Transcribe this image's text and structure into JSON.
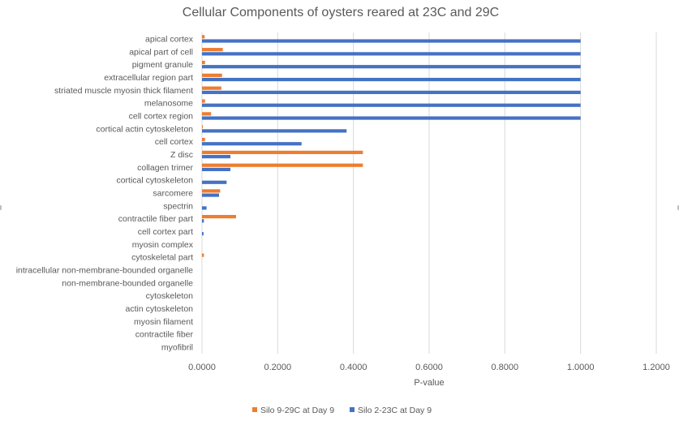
{
  "chart_data": {
    "type": "bar",
    "orientation": "horizontal",
    "title": "Cellular Components of oysters reared at 23C and 29C",
    "xlabel": "P-value",
    "ylabel": "",
    "xlim": [
      0,
      1.2
    ],
    "x_ticks": [
      "0.0000",
      "0.2000",
      "0.4000",
      "0.6000",
      "0.8000",
      "1.0000",
      "1.2000"
    ],
    "x_tick_values": [
      0,
      0.2,
      0.4,
      0.6,
      0.8,
      1.0,
      1.2
    ],
    "grid": true,
    "legend_position": "bottom",
    "categories": [
      "apical cortex",
      "apical part of cell",
      "pigment granule",
      "extracellular region part",
      "striated muscle myosin thick filament",
      "melanosome",
      "cell cortex region",
      "cortical actin cytoskeleton",
      "cell cortex",
      "Z disc",
      "collagen trimer",
      "cortical cytoskeleton",
      "sarcomere",
      "spectrin",
      "contractile fiber part",
      "cell cortex part",
      "myosin complex",
      "cytoskeletal part",
      "intracellular non-membrane-bounded organelle",
      "non-membrane-bounded organelle",
      "cytoskeleton",
      "actin cytoskeleton",
      "myosin filament",
      "contractile fiber",
      "myofibril"
    ],
    "series": [
      {
        "name": "Silo 9-29C at Day 9",
        "color": "#ed7d31",
        "values": [
          0.007,
          0.055,
          0.008,
          0.053,
          0.051,
          0.008,
          0.024,
          0.002,
          0.008,
          0.425,
          0.425,
          0.0,
          0.048,
          0.0,
          0.09,
          0.0,
          0.0,
          0.005,
          0.0,
          0.0,
          0.0,
          0.0,
          0.0,
          0.0,
          0.0
        ]
      },
      {
        "name": "Silo 2-23C at Day 9",
        "color": "#4472c4",
        "values": [
          1.0,
          1.0,
          1.0,
          1.0,
          1.0,
          1.0,
          1.0,
          0.382,
          0.263,
          0.075,
          0.075,
          0.065,
          0.045,
          0.012,
          0.005,
          0.004,
          0.0,
          0.0,
          0.0,
          0.0,
          0.0,
          0.0,
          0.0,
          0.0,
          0.0
        ]
      }
    ]
  }
}
